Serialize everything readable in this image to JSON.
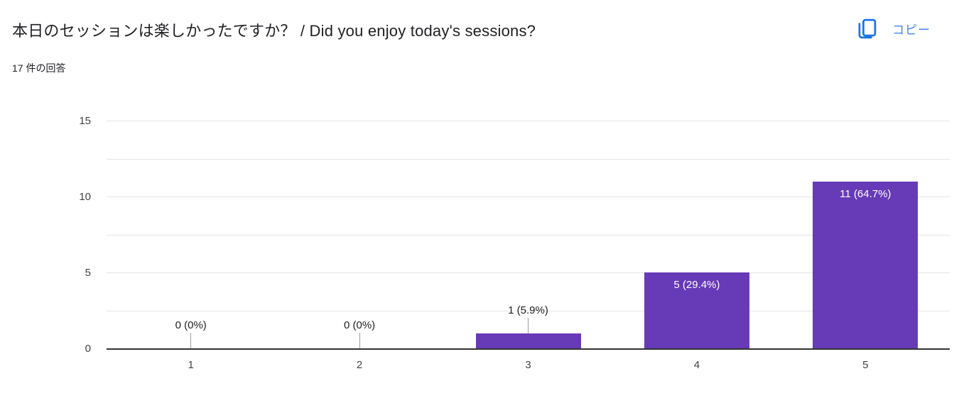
{
  "header": {
    "title": "本日のセッションは楽しかったですか？ / Did you enjoy today's sessions?",
    "response_count": "17 件の回答",
    "copy_button": {
      "label": "コピー",
      "icon": "copy-icon",
      "icon_color": "#1a73e8",
      "label_color": "#4285f4"
    }
  },
  "chart_data": {
    "type": "bar",
    "categories": [
      "1",
      "2",
      "3",
      "4",
      "5"
    ],
    "values": [
      0,
      0,
      1,
      5,
      11
    ],
    "value_labels": [
      "0 (0%)",
      "0 (0%)",
      "1 (5.9%)",
      "5 (29.4%)",
      "11 (64.7%)"
    ],
    "title": "本日のセッションは楽しかったですか？ / Did you enjoy today's sessions?",
    "xlabel": "",
    "ylabel": "",
    "ylim": [
      0,
      15
    ],
    "yticks": [
      0,
      5,
      10,
      15
    ],
    "grid_step": 2.5,
    "grid": "on",
    "legend": "none",
    "bar_color": "#673ab7",
    "gridline_color": "#e6e6e6",
    "baseline_color": "#333333",
    "axis_label_color": "#424242",
    "outside_label_color": "#212121",
    "inside_label_color": "#ffffff"
  }
}
